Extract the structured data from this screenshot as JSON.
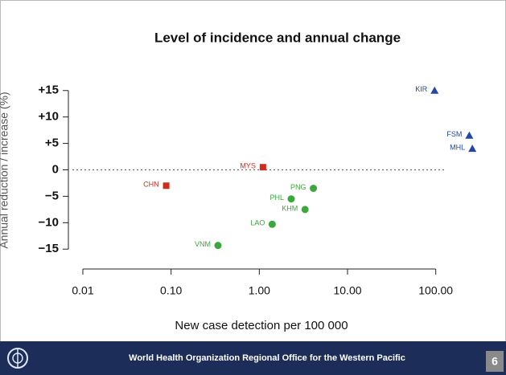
{
  "chart_data": {
    "type": "scatter",
    "title": "Level of incidence and annual change",
    "xlabel": "New case detection per 100 000",
    "ylabel": "Annual reduction / increase (%)",
    "xscale": "log",
    "xlim": [
      0.005,
      300
    ],
    "xticks": [
      {
        "value": 0.01,
        "label": "0.01"
      },
      {
        "value": 0.1,
        "label": "0.10"
      },
      {
        "value": 1,
        "label": "1.00"
      },
      {
        "value": 10,
        "label": "10.00"
      },
      {
        "value": 100,
        "label": "100.00"
      }
    ],
    "ylim": [
      -18,
      18
    ],
    "yticks": [
      {
        "value": 15,
        "label": "+15"
      },
      {
        "value": 10,
        "label": "+10"
      },
      {
        "value": 5,
        "label": "+5"
      },
      0,
      {
        "value": -5,
        "label": "−5"
      },
      {
        "value": -10,
        "label": "−10"
      },
      {
        "value": -15,
        "label": "−15"
      }
    ],
    "hline": 0,
    "series": [
      {
        "color": "#d42a1e",
        "marker": "square",
        "labels": [
          "CHN",
          "MYS"
        ],
        "x": [
          0.088,
          1.1
        ],
        "values": [
          -3,
          0.5
        ]
      },
      {
        "color": "#3ca83c",
        "marker": "circle",
        "labels": [
          "PNG",
          "PHL",
          "KHM",
          "LAO",
          "VNM"
        ],
        "x": [
          4.1,
          2.3,
          3.3,
          1.4,
          0.34
        ],
        "values": [
          -3.5,
          -5.5,
          -7.5,
          -10.3,
          -14.3
        ]
      },
      {
        "color": "#2046a8",
        "marker": "triangle",
        "labels": [
          "KIR",
          "FSM",
          "MHL"
        ],
        "x": [
          97,
          240,
          260
        ],
        "values": [
          15,
          6.5,
          4
        ]
      }
    ]
  },
  "footer": {
    "text": "World Health Organization Regional Office for the Western Pacific",
    "page": "6"
  }
}
